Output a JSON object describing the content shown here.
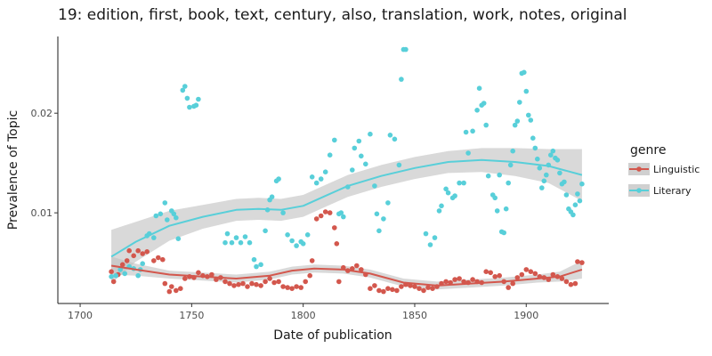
{
  "chart_data": {
    "type": "scatter",
    "title": "19: edition, first, book, text, century, also, translation, work, notes, original",
    "xlabel": "Date of publication",
    "ylabel": "Prevalence of Topic",
    "xlim": [
      1690,
      1937
    ],
    "ylim": [
      0.0009,
      0.0277
    ],
    "x_ticks": [
      1700,
      1750,
      1800,
      1850,
      1900
    ],
    "y_ticks": [
      0.01,
      0.02
    ],
    "y_tick_labels": [
      "0.01",
      "0.02"
    ],
    "grid": false,
    "legend": {
      "title": "genre",
      "placement": "right"
    },
    "series": [
      {
        "name": "Linguistic",
        "color": "#d3574d",
        "points": [
          [
            1714,
            0.0041
          ],
          [
            1715,
            0.0031
          ],
          [
            1717,
            0.0038
          ],
          [
            1719,
            0.0048
          ],
          [
            1721,
            0.0052
          ],
          [
            1722,
            0.0062
          ],
          [
            1724,
            0.0057
          ],
          [
            1726,
            0.0062
          ],
          [
            1728,
            0.0059
          ],
          [
            1730,
            0.0061
          ],
          [
            1733,
            0.0052
          ],
          [
            1735,
            0.0055
          ],
          [
            1737,
            0.0053
          ],
          [
            1738,
            0.0029
          ],
          [
            1740,
            0.0021
          ],
          [
            1741,
            0.0026
          ],
          [
            1743,
            0.0022
          ],
          [
            1745,
            0.0024
          ],
          [
            1747,
            0.0034
          ],
          [
            1749,
            0.0036
          ],
          [
            1751,
            0.0035
          ],
          [
            1753,
            0.004
          ],
          [
            1755,
            0.0037
          ],
          [
            1757,
            0.0036
          ],
          [
            1759,
            0.0038
          ],
          [
            1761,
            0.0033
          ],
          [
            1763,
            0.0035
          ],
          [
            1765,
            0.0031
          ],
          [
            1767,
            0.0029
          ],
          [
            1769,
            0.0027
          ],
          [
            1771,
            0.0028
          ],
          [
            1773,
            0.0029
          ],
          [
            1775,
            0.0026
          ],
          [
            1777,
            0.0029
          ],
          [
            1779,
            0.0028
          ],
          [
            1781,
            0.0027
          ],
          [
            1783,
            0.0031
          ],
          [
            1785,
            0.0034
          ],
          [
            1787,
            0.003
          ],
          [
            1789,
            0.0031
          ],
          [
            1791,
            0.0026
          ],
          [
            1793,
            0.0025
          ],
          [
            1795,
            0.0024
          ],
          [
            1797,
            0.0026
          ],
          [
            1799,
            0.0025
          ],
          [
            1801,
            0.0031
          ],
          [
            1803,
            0.0037
          ],
          [
            1804,
            0.0052
          ],
          [
            1806,
            0.0094
          ],
          [
            1808,
            0.0097
          ],
          [
            1810,
            0.0101
          ],
          [
            1812,
            0.01
          ],
          [
            1814,
            0.0085
          ],
          [
            1815,
            0.0069
          ],
          [
            1816,
            0.0031
          ],
          [
            1818,
            0.0045
          ],
          [
            1820,
            0.0042
          ],
          [
            1822,
            0.0044
          ],
          [
            1824,
            0.0047
          ],
          [
            1826,
            0.0043
          ],
          [
            1828,
            0.0038
          ],
          [
            1830,
            0.0024
          ],
          [
            1832,
            0.0027
          ],
          [
            1834,
            0.0022
          ],
          [
            1836,
            0.0021
          ],
          [
            1838,
            0.0024
          ],
          [
            1840,
            0.0023
          ],
          [
            1842,
            0.0022
          ],
          [
            1844,
            0.0026
          ],
          [
            1846,
            0.0028
          ],
          [
            1848,
            0.0027
          ],
          [
            1850,
            0.0026
          ],
          [
            1852,
            0.0024
          ],
          [
            1854,
            0.0022
          ],
          [
            1856,
            0.0025
          ],
          [
            1858,
            0.0024
          ],
          [
            1860,
            0.0026
          ],
          [
            1862,
            0.0029
          ],
          [
            1864,
            0.0031
          ],
          [
            1866,
            0.003
          ],
          [
            1868,
            0.0033
          ],
          [
            1870,
            0.0034
          ],
          [
            1872,
            0.0031
          ],
          [
            1874,
            0.003
          ],
          [
            1876,
            0.0033
          ],
          [
            1878,
            0.0031
          ],
          [
            1880,
            0.003
          ],
          [
            1882,
            0.0041
          ],
          [
            1884,
            0.004
          ],
          [
            1886,
            0.0036
          ],
          [
            1888,
            0.0037
          ],
          [
            1890,
            0.0031
          ],
          [
            1892,
            0.0025
          ],
          [
            1894,
            0.0029
          ],
          [
            1896,
            0.0035
          ],
          [
            1898,
            0.0038
          ],
          [
            1900,
            0.0043
          ],
          [
            1902,
            0.0041
          ],
          [
            1904,
            0.0039
          ],
          [
            1906,
            0.0036
          ],
          [
            1908,
            0.0035
          ],
          [
            1910,
            0.0033
          ],
          [
            1912,
            0.0038
          ],
          [
            1914,
            0.0036
          ],
          [
            1916,
            0.0034
          ],
          [
            1918,
            0.0031
          ],
          [
            1920,
            0.0028
          ],
          [
            1922,
            0.0029
          ],
          [
            1923,
            0.0051
          ],
          [
            1925,
            0.005
          ]
        ],
        "trend": [
          [
            1714,
            0.0047
          ],
          [
            1725,
            0.0043
          ],
          [
            1740,
            0.0038
          ],
          [
            1755,
            0.0036
          ],
          [
            1770,
            0.0034
          ],
          [
            1785,
            0.0037
          ],
          [
            1795,
            0.0042
          ],
          [
            1805,
            0.0044
          ],
          [
            1818,
            0.0043
          ],
          [
            1830,
            0.0039
          ],
          [
            1845,
            0.003
          ],
          [
            1860,
            0.0027
          ],
          [
            1875,
            0.0029
          ],
          [
            1890,
            0.0031
          ],
          [
            1905,
            0.0034
          ],
          [
            1915,
            0.0036
          ],
          [
            1925,
            0.0043
          ]
        ],
        "band_halfwidth": [
          0.0009,
          0.0006,
          0.0004,
          0.0004,
          0.0004,
          0.0004,
          0.0004,
          0.0004,
          0.0004,
          0.0004,
          0.0004,
          0.0004,
          0.0004,
          0.0004,
          0.0004,
          0.0005,
          0.0009
        ]
      },
      {
        "name": "Literary",
        "color": "#58cfd9",
        "points": [
          [
            1714,
            0.0036
          ],
          [
            1716,
            0.0037
          ],
          [
            1718,
            0.0043
          ],
          [
            1720,
            0.0039
          ],
          [
            1722,
            0.0046
          ],
          [
            1724,
            0.0044
          ],
          [
            1726,
            0.0037
          ],
          [
            1727,
            0.0043
          ],
          [
            1728,
            0.0049
          ],
          [
            1730,
            0.0077
          ],
          [
            1731,
            0.0079
          ],
          [
            1733,
            0.0075
          ],
          [
            1734,
            0.0097
          ],
          [
            1736,
            0.0099
          ],
          [
            1738,
            0.011
          ],
          [
            1739,
            0.0093
          ],
          [
            1741,
            0.0102
          ],
          [
            1742,
            0.0099
          ],
          [
            1743,
            0.0095
          ],
          [
            1744,
            0.0074
          ],
          [
            1746,
            0.0223
          ],
          [
            1747,
            0.0227
          ],
          [
            1748,
            0.0215
          ],
          [
            1749,
            0.0206
          ],
          [
            1751,
            0.0207
          ],
          [
            1752,
            0.0208
          ],
          [
            1753,
            0.0214
          ],
          [
            1765,
            0.007
          ],
          [
            1766,
            0.0079
          ],
          [
            1768,
            0.007
          ],
          [
            1770,
            0.0075
          ],
          [
            1772,
            0.007
          ],
          [
            1774,
            0.0076
          ],
          [
            1776,
            0.007
          ],
          [
            1778,
            0.0053
          ],
          [
            1779,
            0.0046
          ],
          [
            1781,
            0.0048
          ],
          [
            1783,
            0.0082
          ],
          [
            1784,
            0.0103
          ],
          [
            1785,
            0.0113
          ],
          [
            1786,
            0.0116
          ],
          [
            1788,
            0.0132
          ],
          [
            1789,
            0.0134
          ],
          [
            1791,
            0.01
          ],
          [
            1793,
            0.0078
          ],
          [
            1795,
            0.0072
          ],
          [
            1797,
            0.0067
          ],
          [
            1799,
            0.0071
          ],
          [
            1800,
            0.0069
          ],
          [
            1802,
            0.0078
          ],
          [
            1804,
            0.0136
          ],
          [
            1806,
            0.013
          ],
          [
            1808,
            0.0134
          ],
          [
            1810,
            0.0141
          ],
          [
            1812,
            0.0158
          ],
          [
            1814,
            0.0173
          ],
          [
            1816,
            0.0099
          ],
          [
            1817,
            0.01
          ],
          [
            1818,
            0.0096
          ],
          [
            1820,
            0.0126
          ],
          [
            1822,
            0.0143
          ],
          [
            1823,
            0.0165
          ],
          [
            1825,
            0.0172
          ],
          [
            1826,
            0.0157
          ],
          [
            1828,
            0.0149
          ],
          [
            1830,
            0.0179
          ],
          [
            1832,
            0.0127
          ],
          [
            1833,
            0.0099
          ],
          [
            1834,
            0.0082
          ],
          [
            1836,
            0.0094
          ],
          [
            1838,
            0.011
          ],
          [
            1839,
            0.0178
          ],
          [
            1841,
            0.0174
          ],
          [
            1843,
            0.0148
          ],
          [
            1844,
            0.0234
          ],
          [
            1845,
            0.0264
          ],
          [
            1846,
            0.0264
          ],
          [
            1855,
            0.0079
          ],
          [
            1857,
            0.0068
          ],
          [
            1859,
            0.0075
          ],
          [
            1861,
            0.0102
          ],
          [
            1862,
            0.0107
          ],
          [
            1864,
            0.0124
          ],
          [
            1865,
            0.012
          ],
          [
            1867,
            0.0115
          ],
          [
            1868,
            0.0117
          ],
          [
            1870,
            0.013
          ],
          [
            1872,
            0.013
          ],
          [
            1873,
            0.0181
          ],
          [
            1874,
            0.016
          ],
          [
            1876,
            0.0182
          ],
          [
            1878,
            0.0203
          ],
          [
            1879,
            0.0225
          ],
          [
            1880,
            0.0208
          ],
          [
            1881,
            0.021
          ],
          [
            1882,
            0.0188
          ],
          [
            1883,
            0.0137
          ],
          [
            1885,
            0.0118
          ],
          [
            1886,
            0.0115
          ],
          [
            1887,
            0.0102
          ],
          [
            1888,
            0.0138
          ],
          [
            1889,
            0.0081
          ],
          [
            1890,
            0.008
          ],
          [
            1891,
            0.0104
          ],
          [
            1892,
            0.013
          ],
          [
            1893,
            0.0148
          ],
          [
            1894,
            0.0162
          ],
          [
            1895,
            0.0188
          ],
          [
            1896,
            0.0192
          ],
          [
            1897,
            0.0211
          ],
          [
            1898,
            0.024
          ],
          [
            1899,
            0.0241
          ],
          [
            1900,
            0.0222
          ],
          [
            1901,
            0.0198
          ],
          [
            1902,
            0.0193
          ],
          [
            1903,
            0.0175
          ],
          [
            1904,
            0.0165
          ],
          [
            1905,
            0.0154
          ],
          [
            1906,
            0.0145
          ],
          [
            1907,
            0.0125
          ],
          [
            1908,
            0.0132
          ],
          [
            1909,
            0.0138
          ],
          [
            1910,
            0.0148
          ],
          [
            1911,
            0.0158
          ],
          [
            1912,
            0.0162
          ],
          [
            1913,
            0.0155
          ],
          [
            1914,
            0.0153
          ],
          [
            1915,
            0.014
          ],
          [
            1916,
            0.0129
          ],
          [
            1917,
            0.0131
          ],
          [
            1918,
            0.0118
          ],
          [
            1919,
            0.0104
          ],
          [
            1920,
            0.0101
          ],
          [
            1921,
            0.0098
          ],
          [
            1922,
            0.0108
          ],
          [
            1923,
            0.0119
          ],
          [
            1924,
            0.0112
          ],
          [
            1925,
            0.0129
          ]
        ],
        "trend": [
          [
            1714,
            0.0056
          ],
          [
            1725,
            0.0071
          ],
          [
            1740,
            0.0087
          ],
          [
            1755,
            0.0096
          ],
          [
            1770,
            0.0103
          ],
          [
            1780,
            0.0104
          ],
          [
            1790,
            0.0103
          ],
          [
            1800,
            0.0107
          ],
          [
            1810,
            0.0117
          ],
          [
            1820,
            0.0127
          ],
          [
            1835,
            0.0137
          ],
          [
            1850,
            0.0145
          ],
          [
            1865,
            0.0151
          ],
          [
            1880,
            0.0153
          ],
          [
            1895,
            0.0151
          ],
          [
            1910,
            0.0147
          ],
          [
            1925,
            0.0138
          ]
        ],
        "band_halfwidth": [
          0.0027,
          0.002,
          0.0015,
          0.0012,
          0.0011,
          0.0011,
          0.0011,
          0.0011,
          0.0011,
          0.0011,
          0.0011,
          0.0011,
          0.0011,
          0.0012,
          0.0014,
          0.0017,
          0.0026
        ]
      }
    ]
  }
}
